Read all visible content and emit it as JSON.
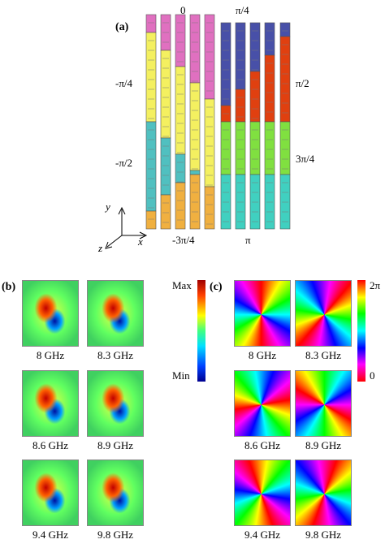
{
  "panel_a": {
    "label": "(a)",
    "phase_labels": [
      "0",
      "π/4",
      "-π/4",
      "π/2",
      "-π/2",
      "3π/4",
      "-3π/4",
      "π"
    ],
    "axes": [
      "y",
      "z",
      "x"
    ]
  },
  "panel_b": {
    "label": "(b)",
    "scale": [
      "Max",
      "Min"
    ],
    "frequencies": [
      "8 GHz",
      "8.3 GHz",
      "8.6 GHz",
      "8.9 GHz",
      "9.4 GHz",
      "9.8 GHz"
    ]
  },
  "panel_c": {
    "label": "(c)",
    "scale": [
      "2π",
      "0"
    ],
    "frequencies": [
      "8 GHz",
      "8.3 GHz",
      "8.6 GHz",
      "8.9 GHz",
      "9.4 GHz",
      "9.8 GHz"
    ]
  }
}
